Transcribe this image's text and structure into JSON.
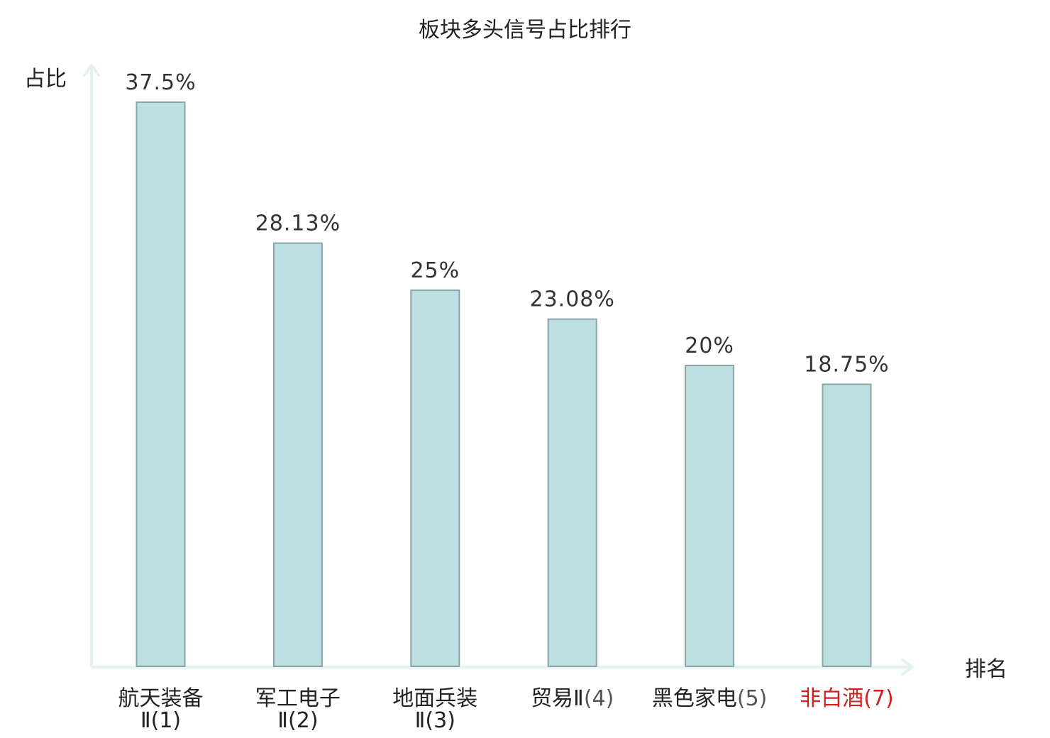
{
  "chart_data": {
    "type": "bar",
    "title": "板块多头信号占比排行",
    "xlabel": "排名",
    "ylabel": "占比",
    "categories": [
      {
        "name": "航天装备",
        "rank": "Ⅱ(1)",
        "highlight": false
      },
      {
        "name": "军工电子",
        "rank": "Ⅱ(2)",
        "highlight": false
      },
      {
        "name": "地面兵装",
        "rank": "Ⅱ(3)",
        "highlight": false
      },
      {
        "name": "贸易Ⅱ",
        "rank": "(4)",
        "highlight": false
      },
      {
        "name": "黑色家电",
        "rank": "(5)",
        "highlight": false
      },
      {
        "name": "非白酒",
        "rank": "(7)",
        "highlight": true
      }
    ],
    "values": [
      37.5,
      28.13,
      25,
      23.08,
      20,
      18.75
    ],
    "value_labels": [
      "37.5%",
      "28.13%",
      "25%",
      "23.08%",
      "20%",
      "18.75%"
    ],
    "ylim": [
      0,
      37.5
    ],
    "grid": false,
    "colors": {
      "bar_fill": "#bce0e2",
      "bar_stroke": "#8aa6a8",
      "axis": "#e2f2f1",
      "highlight": "#cc2222",
      "text": "#222222",
      "rank_text": "#555555"
    }
  }
}
